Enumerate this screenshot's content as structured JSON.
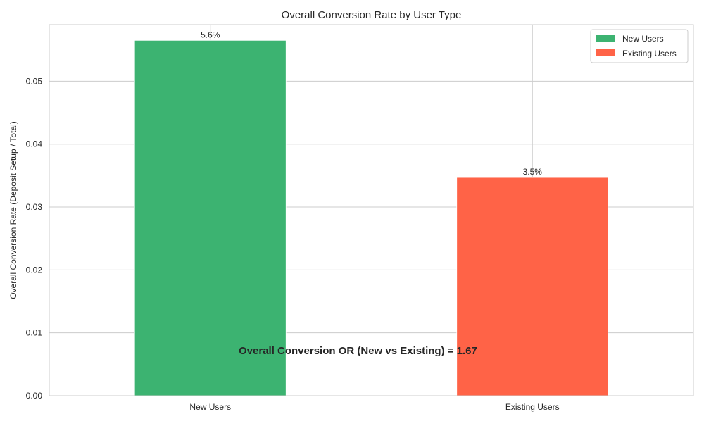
{
  "chart_data": {
    "type": "bar",
    "title": "Overall Conversion Rate by User Type",
    "xlabel": "",
    "ylabel": "Overall Conversion Rate (Deposit Setup / Total)",
    "categories": [
      "New Users",
      "Existing Users"
    ],
    "values": [
      0.0565,
      0.0347
    ],
    "bar_labels": [
      "5.6%",
      "3.5%"
    ],
    "colors": [
      "#3cb371",
      "#ff6347"
    ],
    "ylim": [
      0,
      0.059
    ],
    "yticks": [
      0,
      0.01,
      0.02,
      0.03,
      0.04,
      0.05
    ],
    "ytick_labels": [
      "0.00",
      "0.01",
      "0.02",
      "0.03",
      "0.04",
      "0.05"
    ],
    "grid": true,
    "legend": {
      "placement": "top-right",
      "entries": [
        {
          "label": "New Users",
          "color": "#3cb371"
        },
        {
          "label": "Existing Users",
          "color": "#ff6347"
        }
      ]
    },
    "annotation": "Overall Conversion OR (New vs Existing) = 1.67"
  }
}
